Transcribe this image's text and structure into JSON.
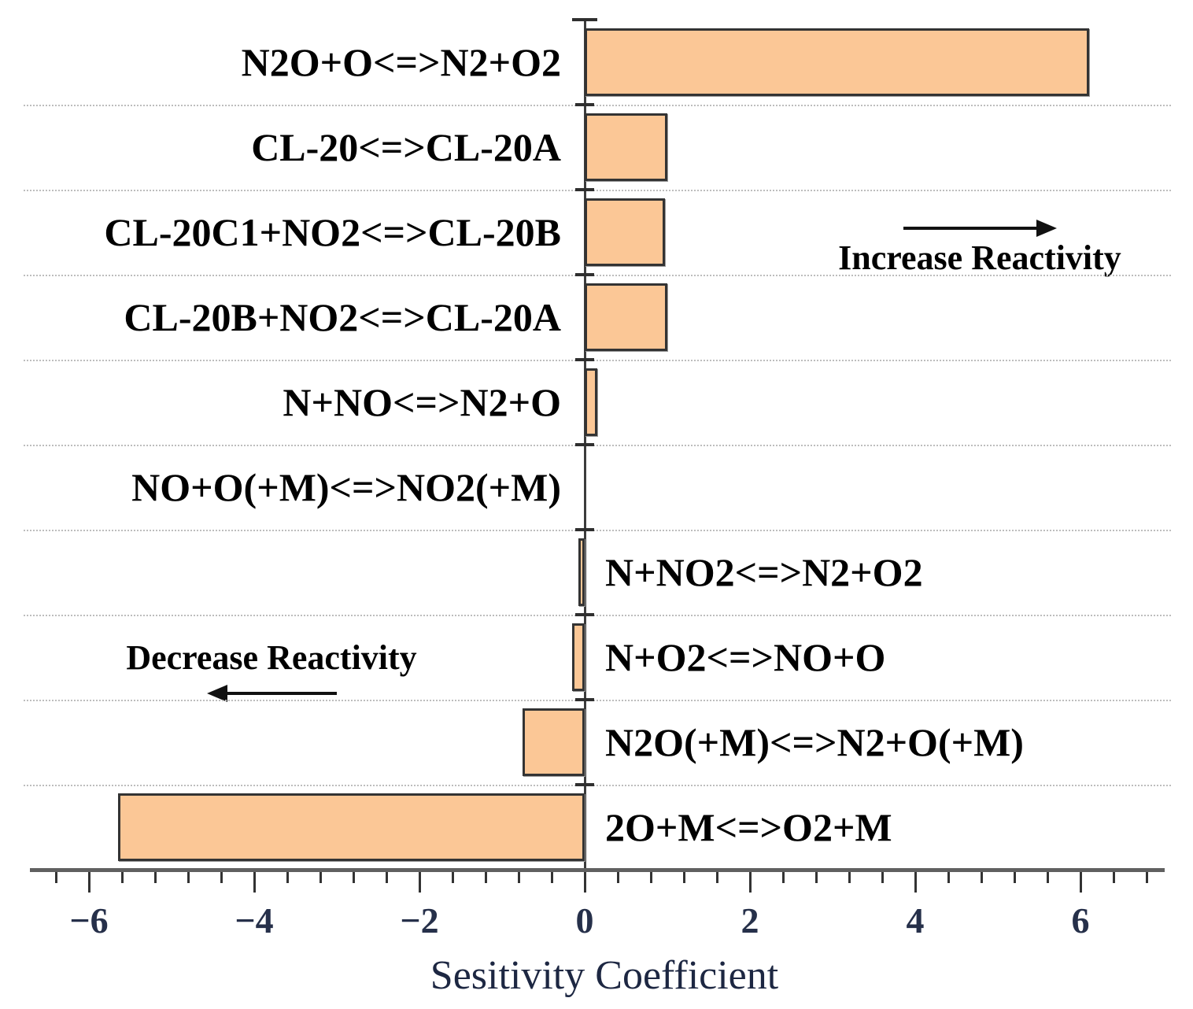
{
  "chart_data": {
    "type": "bar",
    "orientation": "horizontal",
    "title": "",
    "xlabel": "Sesitivity Coefficient",
    "ylabel": "",
    "categories": [
      "N2O+O<=>N2+O2",
      "CL-20<=>CL-20A",
      "CL-20C1+NO2<=>CL-20B",
      "CL-20B+NO2<=>CL-20A",
      "N+NO<=>N2+O",
      "NO+O(+M)<=>NO2(+M)",
      "N+NO2<=>N2+O2",
      "N+O2<=>NO+O",
      "N2O(+M)<=>N2+O(+M)",
      "2O+M<=>O2+M"
    ],
    "values": [
      6.1,
      1.0,
      0.97,
      1.0,
      0.15,
      0.0,
      -0.08,
      -0.15,
      -0.75,
      -5.65
    ],
    "label_sides": [
      "left",
      "left",
      "left",
      "left",
      "left",
      "left",
      "right",
      "right",
      "right",
      "right"
    ],
    "xlim": [
      -6.7,
      7.0
    ],
    "x_major_ticks": [
      -6,
      -4,
      -2,
      0,
      2,
      4,
      6
    ],
    "x_tick_labels": [
      "−6",
      "−4",
      "−2",
      "0",
      "2",
      "4",
      "6"
    ],
    "minor_tick_step": 0.4,
    "grid": "horizontal-dotted",
    "legend": "none",
    "bar_color": "#FBC796",
    "bar_border_color": "#333333",
    "tick_label_color": "#26304A",
    "axis_title_color": "#1D2742",
    "annotations": [
      {
        "text": "Increase Reactivity",
        "direction": "right"
      },
      {
        "text": "Decrease Reactivity",
        "direction": "left"
      }
    ]
  }
}
